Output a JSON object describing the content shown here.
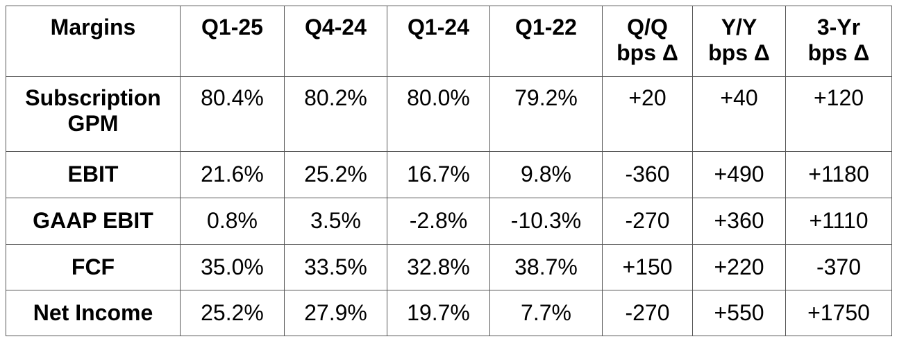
{
  "table": {
    "headers": [
      "Margins",
      "Q1-25",
      "Q4-24",
      "Q1-24",
      "Q1-22",
      "Q/Q\nbps Δ",
      "Y/Y\nbps Δ",
      "3-Yr\nbps Δ"
    ],
    "header_lines": {
      "qq": [
        "Q/Q",
        "bps Δ"
      ],
      "yy": [
        "Y/Y",
        "bps Δ"
      ],
      "yr3": [
        "3-Yr",
        "bps Δ"
      ]
    },
    "rows": [
      {
        "label_lines": [
          "Subscription",
          "GPM"
        ],
        "label": "Subscription GPM",
        "q1_25": "80.4%",
        "q4_24": "80.2%",
        "q1_24": "80.0%",
        "q1_22": "79.2%",
        "qq": "+20",
        "yy": "+40",
        "yr3": "+120"
      },
      {
        "label_lines": [
          "EBIT"
        ],
        "label": "EBIT",
        "q1_25": "21.6%",
        "q4_24": "25.2%",
        "q1_24": "16.7%",
        "q1_22": "9.8%",
        "qq": "-360",
        "yy": "+490",
        "yr3": "+1180"
      },
      {
        "label_lines": [
          "GAAP EBIT"
        ],
        "label": "GAAP EBIT",
        "q1_25": "0.8%",
        "q4_24": "3.5%",
        "q1_24": "-2.8%",
        "q1_22": "-10.3%",
        "qq": "-270",
        "yy": "+360",
        "yr3": "+1110"
      },
      {
        "label_lines": [
          "FCF"
        ],
        "label": "FCF",
        "q1_25": "35.0%",
        "q4_24": "33.5%",
        "q1_24": "32.8%",
        "q1_22": "38.7%",
        "qq": "+150",
        "yy": "+220",
        "yr3": "-370"
      },
      {
        "label_lines": [
          "Net Income"
        ],
        "label": "Net Income",
        "q1_25": "25.2%",
        "q4_24": "27.9%",
        "q1_24": "19.7%",
        "q1_22": "7.7%",
        "qq": "-270",
        "yy": "+550",
        "yr3": "+1750"
      }
    ]
  },
  "colors": {
    "border": "#555555",
    "text": "#000000",
    "background": "#ffffff"
  }
}
